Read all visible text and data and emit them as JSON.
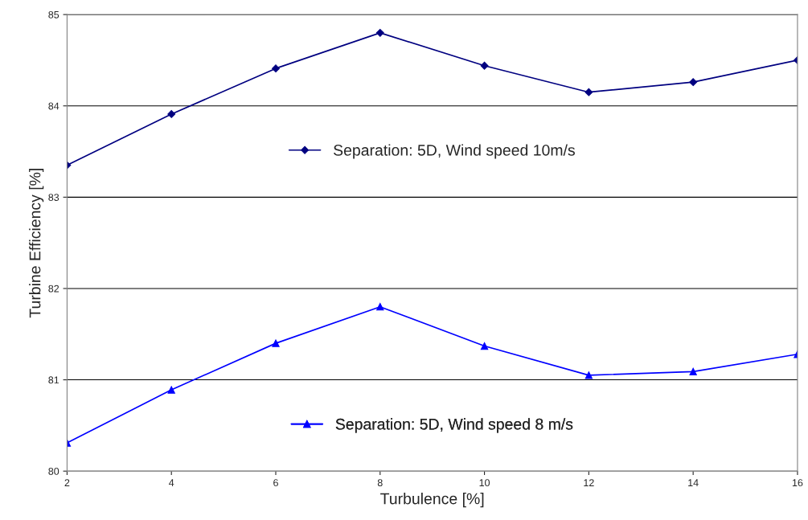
{
  "chart_data": {
    "type": "line",
    "xlabel": "Turbulence [%]",
    "ylabel": "Turbine Efficiency [%]",
    "x": [
      2,
      4,
      6,
      8,
      10,
      12,
      14,
      16
    ],
    "series": [
      {
        "name": "Separation: 5D, Wind speed 10m/s",
        "color": "#000080",
        "marker": "diamond",
        "values": [
          83.35,
          83.91,
          84.41,
          84.8,
          84.44,
          84.15,
          84.26,
          84.5
        ]
      },
      {
        "name": "Separation: 5D, Wind speed 8 m/s",
        "color": "#0000ff",
        "marker": "triangle",
        "values": [
          80.31,
          80.89,
          81.4,
          81.8,
          81.37,
          81.05,
          81.09,
          81.28
        ]
      }
    ],
    "xlim": [
      2,
      16
    ],
    "xticks": [
      2,
      4,
      6,
      8,
      10,
      12,
      14,
      16
    ],
    "ylim": [
      80,
      85
    ],
    "yticks": [
      80,
      81,
      82,
      83,
      84,
      85
    ],
    "grid": "y",
    "legend": "center"
  }
}
